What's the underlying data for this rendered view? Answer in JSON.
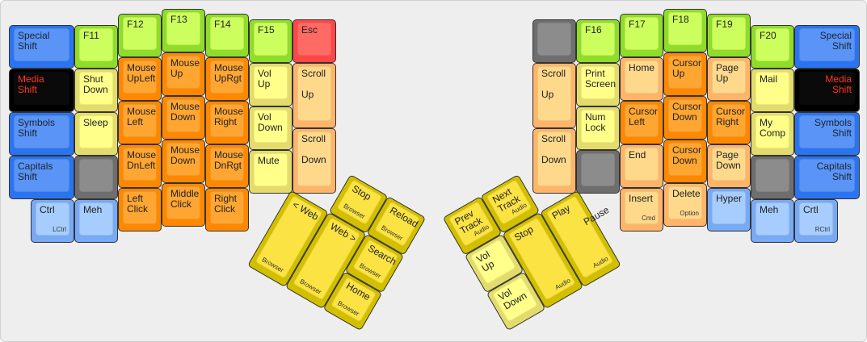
{
  "palette": {
    "blue": {
      "outer": "#2a74f2",
      "top": "#5a94f6",
      "text": "#1b2433"
    },
    "lightblue": {
      "outer": "#78a9f4",
      "top": "#a6cdfd",
      "text": "#222222"
    },
    "black": {
      "outer": "#000000",
      "top": "#0a0a0a",
      "text": "#ff3524"
    },
    "green": {
      "outer": "#8fdc2b",
      "top": "#ccff5e",
      "text": "#222222"
    },
    "yellow": {
      "outer": "#e3dc6c",
      "top": "#ffff8a",
      "text": "#222222"
    },
    "grey": {
      "outer": "#6e6e6e",
      "top": "#8c8c8c",
      "text": "#222222"
    },
    "orange": {
      "outer": "#ff8800",
      "top": "#ffa632",
      "text": "#222222"
    },
    "lightorange": {
      "outer": "#ffb46a",
      "top": "#ffd98b",
      "text": "#222222"
    },
    "red": {
      "outer": "#ff4646",
      "top": "#ff6a64",
      "text": "#222222"
    },
    "thumbyellow": {
      "outer": "#d2c000",
      "top": "#fbe343",
      "text": "#222222"
    }
  },
  "left_keys": [
    {
      "label": "Special\nShift",
      "color": "blue"
    },
    {
      "label": "Media\nShift",
      "color": "black"
    },
    {
      "label": "Symbols\nShift",
      "color": "blue"
    },
    {
      "label": "Capitals\nShift",
      "color": "blue"
    },
    {
      "label": "Ctrl",
      "sub": "LCtrl",
      "color": "lightblue"
    },
    {
      "label": "F11",
      "color": "green"
    },
    {
      "label": "Shut\nDown",
      "color": "yellow"
    },
    {
      "label": "Sleep",
      "color": "yellow"
    },
    {
      "label": "",
      "color": "grey"
    },
    {
      "label": "Meh",
      "color": "lightblue"
    },
    {
      "label": "F12",
      "color": "green"
    },
    {
      "label": "Mouse\nUpLeft",
      "color": "orange"
    },
    {
      "label": "Mouse\nLeft",
      "color": "orange"
    },
    {
      "label": "Mouse\nDnLeft",
      "color": "orange"
    },
    {
      "label": "Left\nClick",
      "color": "orange"
    },
    {
      "label": "F13",
      "color": "green"
    },
    {
      "label": "Mouse\nUp",
      "color": "orange"
    },
    {
      "label": "Mouse\nDown",
      "color": "orange"
    },
    {
      "label": "Mouse\nDown",
      "color": "orange"
    },
    {
      "label": "Middle\nClick",
      "color": "orange"
    },
    {
      "label": "F14",
      "color": "green"
    },
    {
      "label": "Mouse\nUpRgt",
      "color": "orange"
    },
    {
      "label": "Mouse\nRight",
      "color": "orange"
    },
    {
      "label": "Mouse\nDnRgt",
      "color": "orange"
    },
    {
      "label": "Right\nClick",
      "color": "orange"
    },
    {
      "label": "F15",
      "color": "green"
    },
    {
      "label": "Vol\nUp",
      "color": "yellow"
    },
    {
      "label": "Vol\nDown",
      "color": "yellow"
    },
    {
      "label": "Mute",
      "color": "yellow"
    },
    {
      "label": "Esc",
      "color": "red"
    },
    {
      "label": "Scroll\n\nUp",
      "color": "lightorange"
    },
    {
      "label": "Scroll\n\nDown",
      "color": "lightorange"
    }
  ],
  "right_keys": [
    {
      "label": "",
      "color": "grey"
    },
    {
      "label": "Scroll\n\nUp",
      "color": "lightorange"
    },
    {
      "label": "Scroll\n\nDown",
      "color": "lightorange"
    },
    {
      "label": "F16",
      "color": "green"
    },
    {
      "label": "Print\nScreen",
      "color": "yellow"
    },
    {
      "label": "Num\nLock",
      "color": "yellow"
    },
    {
      "label": "",
      "color": "grey"
    },
    {
      "label": "F17",
      "color": "green"
    },
    {
      "label": "Home",
      "color": "lightorange"
    },
    {
      "label": "Cursor\nLeft",
      "color": "orange"
    },
    {
      "label": "End",
      "color": "lightorange"
    },
    {
      "label": "Insert",
      "sub": "Cmd",
      "color": "lightorange"
    },
    {
      "label": "F18",
      "color": "green"
    },
    {
      "label": "Cursor\nUp",
      "color": "orange"
    },
    {
      "label": "Cursor\nDown",
      "color": "orange"
    },
    {
      "label": "Cursor\nDown",
      "color": "orange"
    },
    {
      "label": "Delete",
      "sub": "Option",
      "color": "lightorange"
    },
    {
      "label": "F19",
      "color": "green"
    },
    {
      "label": "Page\nUp",
      "color": "lightorange"
    },
    {
      "label": "Cursor\nRight",
      "color": "orange"
    },
    {
      "label": "Page\nDown",
      "color": "lightorange"
    },
    {
      "label": "Hyper",
      "color": "lightblue"
    },
    {
      "label": "F20",
      "color": "green"
    },
    {
      "label": "Mail",
      "color": "yellow"
    },
    {
      "label": "My\nComp",
      "color": "yellow"
    },
    {
      "label": "",
      "color": "grey"
    },
    {
      "label": "Meh",
      "color": "lightblue"
    },
    {
      "label": "Special\nShift",
      "color": "blue",
      "align": "right"
    },
    {
      "label": "Media\nShift",
      "color": "black",
      "align": "right"
    },
    {
      "label": "Symbols\nShift",
      "color": "blue",
      "align": "right"
    },
    {
      "label": "Capitals\nShift",
      "color": "blue",
      "align": "right"
    },
    {
      "label": "Crtl",
      "sub": "RCtrl",
      "color": "lightblue"
    }
  ],
  "left_thumb": [
    {
      "label": "Stop",
      "sub": "Browser",
      "color": "thumbyellow"
    },
    {
      "label": "Reload",
      "sub": "Browser",
      "color": "thumbyellow"
    },
    {
      "label": "< Web",
      "sub": "Browser",
      "color": "thumbyellow"
    },
    {
      "label": "Web >",
      "sub": "Browser",
      "color": "thumbyellow"
    },
    {
      "label": "Search",
      "sub": "Browser",
      "color": "thumbyellow"
    },
    {
      "label": "Home",
      "sub": "Browser",
      "color": "thumbyellow"
    }
  ],
  "right_thumb": [
    {
      "label": "Prev\nTrack",
      "sub": "Audio",
      "color": "thumbyellow"
    },
    {
      "label": "Next\nTrack",
      "sub": "Audio",
      "color": "thumbyellow"
    },
    {
      "label": "Vol\nUp",
      "color": "yellow"
    },
    {
      "label": "Vol\nDown",
      "color": "yellow"
    },
    {
      "label": "Stop",
      "sub": "Audio",
      "color": "thumbyellow"
    },
    {
      "label": "Play\n\n         Pause",
      "sub": "Audio",
      "color": "thumbyellow"
    }
  ]
}
